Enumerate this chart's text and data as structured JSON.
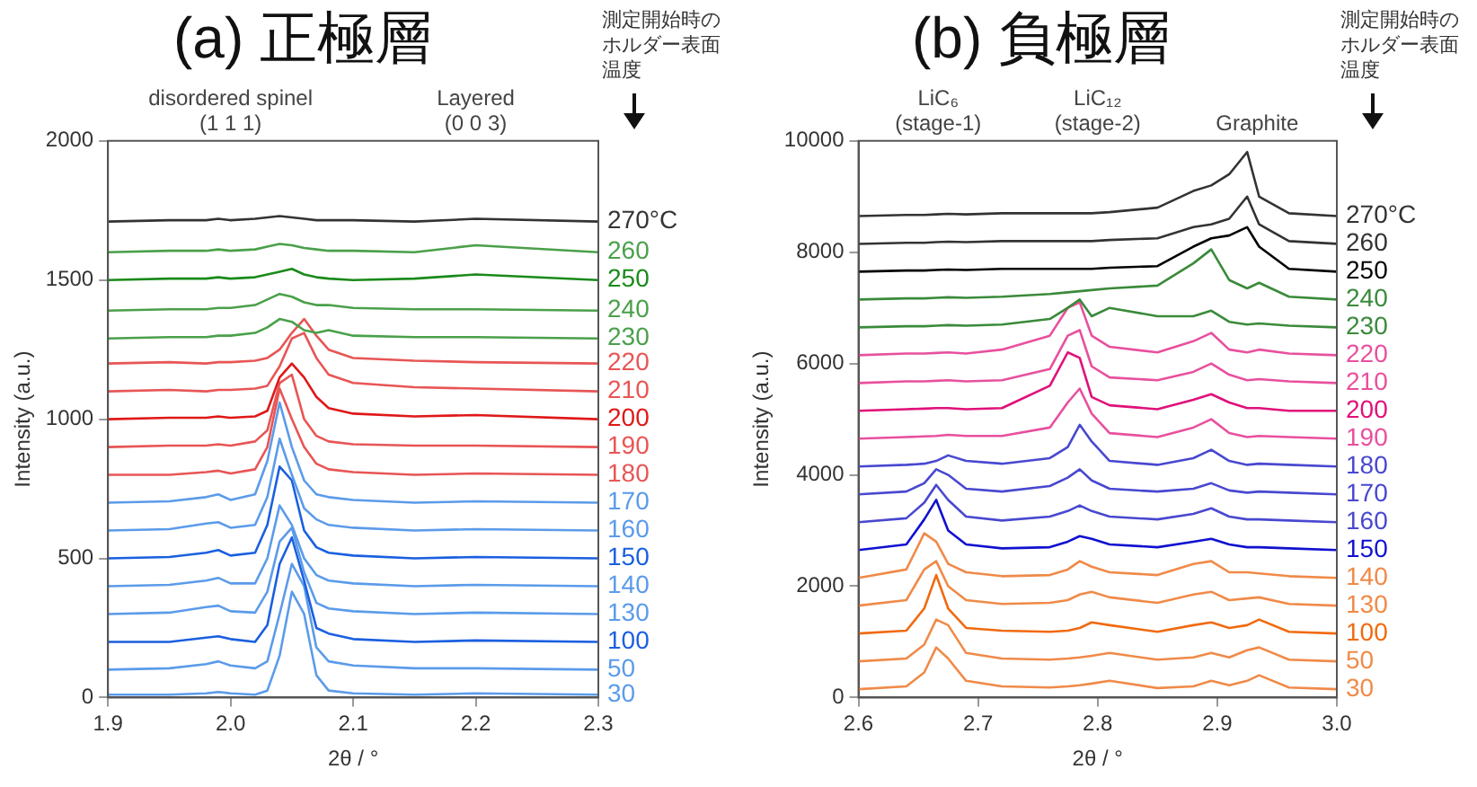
{
  "chart_data": [
    {
      "type": "line",
      "title": "(a) 正極層",
      "xlabel": "2θ / °",
      "ylabel": "Intensity (a.u.)",
      "marker": "none",
      "legend": false,
      "xlim": [
        1.9,
        2.3
      ],
      "xticks": [
        1.9,
        {
          "value": 2,
          "label": "2.0"
        },
        2.1,
        2.2,
        2.3
      ],
      "ylim": [
        0,
        2000
      ],
      "yticks": [
        0,
        500,
        1000,
        1500,
        2000
      ],
      "annotations": [
        "測定開始時のホルダー表面温度",
        "disordered spinel\n(1 1 1)",
        "Layered\n(0 0 3)"
      ],
      "x": [
        1.9,
        1.95,
        1.98,
        1.99,
        2.0,
        2.02,
        2.03,
        2.04,
        2.05,
        2.06,
        2.07,
        2.08,
        2.1,
        2.15,
        2.2,
        2.3
      ],
      "series": [
        {
          "name": "270°C",
          "color": "#333333",
          "values": [
            1710,
            1715,
            1715,
            1720,
            1715,
            1720,
            1725,
            1730,
            1725,
            1720,
            1715,
            1715,
            1715,
            1710,
            1720,
            1710
          ]
        },
        {
          "name": "260",
          "color": "#4aa04a",
          "values": [
            1600,
            1605,
            1605,
            1610,
            1605,
            1610,
            1620,
            1630,
            1625,
            1615,
            1610,
            1605,
            1605,
            1600,
            1625,
            1600
          ]
        },
        {
          "name": "250",
          "color": "#1a8a1a",
          "values": [
            1500,
            1505,
            1505,
            1510,
            1505,
            1510,
            1520,
            1530,
            1540,
            1520,
            1510,
            1505,
            1500,
            1505,
            1520,
            1500
          ]
        },
        {
          "name": "240",
          "color": "#4aa04a",
          "values": [
            1390,
            1395,
            1395,
            1400,
            1400,
            1410,
            1430,
            1450,
            1440,
            1420,
            1410,
            1410,
            1400,
            1395,
            1395,
            1390
          ]
        },
        {
          "name": "230",
          "color": "#4aa04a",
          "values": [
            1290,
            1295,
            1295,
            1300,
            1300,
            1310,
            1330,
            1360,
            1350,
            1320,
            1310,
            1320,
            1300,
            1295,
            1295,
            1290
          ]
        },
        {
          "name": "220",
          "color": "#e85555",
          "values": [
            1200,
            1205,
            1200,
            1205,
            1205,
            1210,
            1220,
            1250,
            1310,
            1360,
            1300,
            1250,
            1220,
            1210,
            1205,
            1200
          ]
        },
        {
          "name": "210",
          "color": "#e85555",
          "values": [
            1100,
            1105,
            1100,
            1105,
            1105,
            1110,
            1120,
            1190,
            1290,
            1310,
            1220,
            1160,
            1130,
            1115,
            1110,
            1100
          ]
        },
        {
          "name": "200",
          "color": "#e01818",
          "values": [
            1000,
            1005,
            1005,
            1010,
            1005,
            1010,
            1030,
            1150,
            1200,
            1150,
            1080,
            1040,
            1020,
            1010,
            1015,
            1000
          ]
        },
        {
          "name": "190",
          "color": "#e85555",
          "values": [
            900,
            905,
            905,
            910,
            905,
            920,
            960,
            1130,
            1160,
            1000,
            940,
            920,
            910,
            905,
            905,
            900
          ]
        },
        {
          "name": "180",
          "color": "#e85555",
          "values": [
            800,
            800,
            810,
            815,
            805,
            820,
            900,
            1110,
            1000,
            900,
            840,
            820,
            810,
            800,
            805,
            800
          ]
        },
        {
          "name": "170",
          "color": "#5b9bea",
          "values": [
            700,
            705,
            720,
            730,
            710,
            730,
            850,
            1060,
            900,
            780,
            730,
            720,
            710,
            700,
            705,
            700
          ]
        },
        {
          "name": "160",
          "color": "#5b9bea",
          "values": [
            600,
            605,
            625,
            630,
            610,
            620,
            720,
            930,
            800,
            680,
            640,
            620,
            610,
            600,
            605,
            600
          ]
        },
        {
          "name": "150",
          "color": "#1a5fe0",
          "values": [
            500,
            505,
            520,
            530,
            510,
            520,
            620,
            830,
            780,
            600,
            540,
            520,
            510,
            500,
            505,
            500
          ]
        },
        {
          "name": "140",
          "color": "#5b9bea",
          "values": [
            400,
            405,
            420,
            430,
            410,
            410,
            500,
            690,
            620,
            500,
            440,
            420,
            410,
            400,
            405,
            400
          ]
        },
        {
          "name": "130",
          "color": "#5b9bea",
          "values": [
            300,
            305,
            325,
            330,
            310,
            305,
            380,
            560,
            610,
            450,
            340,
            320,
            310,
            300,
            305,
            300
          ]
        },
        {
          "name": "100",
          "color": "#1a5fe0",
          "values": [
            200,
            200,
            215,
            220,
            210,
            200,
            260,
            480,
            575,
            420,
            250,
            230,
            210,
            200,
            205,
            200
          ]
        },
        {
          "name": "50",
          "color": "#5b9bea",
          "values": [
            100,
            105,
            120,
            130,
            115,
            105,
            130,
            300,
            480,
            400,
            180,
            130,
            115,
            105,
            105,
            100
          ]
        },
        {
          "name": "30",
          "color": "#5b9bea",
          "values": [
            10,
            10,
            15,
            20,
            15,
            10,
            25,
            150,
            380,
            300,
            80,
            25,
            15,
            10,
            15,
            10
          ]
        }
      ]
    },
    {
      "type": "line",
      "title": "(b) 負極層",
      "xlabel": "2θ / °",
      "ylabel": "Intensity (a.u.)",
      "marker": "none",
      "legend": false,
      "xlim": [
        2.6,
        3.0
      ],
      "xticks": [
        2.6,
        2.7,
        2.8,
        2.9,
        {
          "value": 3,
          "label": "3.0"
        }
      ],
      "ylim": [
        0,
        10000
      ],
      "yticks": [
        0,
        2000,
        4000,
        6000,
        8000,
        10000
      ],
      "annotations": [
        "測定開始時のホルダー表面温度",
        "LiC₆\n(stage-1)",
        "LiC₁₂\n(stage-2)",
        "Graphite"
      ],
      "x": [
        2.6,
        2.64,
        2.655,
        2.665,
        2.675,
        2.69,
        2.72,
        2.76,
        2.775,
        2.785,
        2.795,
        2.81,
        2.85,
        2.88,
        2.895,
        2.91,
        2.925,
        2.935,
        2.96,
        3.0
      ],
      "series": [
        {
          "name": "270°C",
          "color": "#333333",
          "values": [
            8650,
            8670,
            8670,
            8680,
            8690,
            8680,
            8700,
            8700,
            8700,
            8700,
            8700,
            8720,
            8800,
            9100,
            9200,
            9400,
            9800,
            9000,
            8700,
            8650
          ]
        },
        {
          "name": "260",
          "color": "#333333",
          "values": [
            8150,
            8170,
            8170,
            8180,
            8190,
            8180,
            8200,
            8200,
            8200,
            8200,
            8200,
            8220,
            8250,
            8450,
            8500,
            8600,
            9000,
            8500,
            8200,
            8150
          ]
        },
        {
          "name": "250",
          "color": "#000000",
          "values": [
            7650,
            7670,
            7670,
            7680,
            7690,
            7680,
            7700,
            7700,
            7700,
            7700,
            7700,
            7720,
            7750,
            8100,
            8250,
            8300,
            8450,
            8100,
            7700,
            7650
          ]
        },
        {
          "name": "240",
          "color": "#3a8a3a",
          "values": [
            7150,
            7170,
            7170,
            7180,
            7190,
            7180,
            7200,
            7250,
            7280,
            7300,
            7320,
            7350,
            7400,
            7800,
            8050,
            7500,
            7350,
            7450,
            7200,
            7150
          ]
        },
        {
          "name": "230",
          "color": "#3a8a3a",
          "values": [
            6650,
            6670,
            6670,
            6680,
            6690,
            6680,
            6700,
            6800,
            7000,
            7150,
            6850,
            7000,
            6850,
            6850,
            6950,
            6750,
            6700,
            6720,
            6680,
            6650
          ]
        },
        {
          "name": "220",
          "color": "#e8509e",
          "values": [
            6150,
            6180,
            6180,
            6190,
            6200,
            6180,
            6250,
            6500,
            7000,
            7100,
            6500,
            6300,
            6200,
            6400,
            6550,
            6250,
            6200,
            6250,
            6180,
            6150
          ]
        },
        {
          "name": "210",
          "color": "#e8509e",
          "values": [
            5650,
            5680,
            5680,
            5690,
            5700,
            5680,
            5700,
            5900,
            6500,
            6600,
            5950,
            5750,
            5700,
            5850,
            6000,
            5800,
            5700,
            5720,
            5680,
            5650
          ]
        },
        {
          "name": "200",
          "color": "#e0107a",
          "values": [
            5150,
            5180,
            5190,
            5200,
            5200,
            5180,
            5200,
            5600,
            6200,
            6100,
            5400,
            5250,
            5180,
            5350,
            5450,
            5300,
            5200,
            5200,
            5150,
            5150
          ]
        },
        {
          "name": "190",
          "color": "#e8509e",
          "values": [
            4650,
            4680,
            4690,
            4700,
            4720,
            4700,
            4700,
            4850,
            5300,
            5550,
            5100,
            4750,
            4680,
            4850,
            5000,
            4750,
            4680,
            4700,
            4680,
            4650
          ]
        },
        {
          "name": "180",
          "color": "#4848d0",
          "values": [
            4150,
            4180,
            4200,
            4250,
            4350,
            4250,
            4200,
            4300,
            4500,
            4900,
            4600,
            4250,
            4180,
            4300,
            4450,
            4250,
            4180,
            4200,
            4180,
            4150
          ]
        },
        {
          "name": "170",
          "color": "#4848d0",
          "values": [
            3650,
            3700,
            3850,
            4100,
            4000,
            3750,
            3700,
            3800,
            3950,
            4100,
            3900,
            3750,
            3700,
            3750,
            3850,
            3720,
            3680,
            3700,
            3680,
            3650
          ]
        },
        {
          "name": "160",
          "color": "#4848d0",
          "values": [
            3150,
            3220,
            3500,
            3820,
            3550,
            3250,
            3180,
            3250,
            3350,
            3450,
            3350,
            3250,
            3200,
            3300,
            3400,
            3250,
            3200,
            3200,
            3180,
            3150
          ]
        },
        {
          "name": "150",
          "color": "#1010d0",
          "values": [
            2650,
            2750,
            3200,
            3550,
            3000,
            2750,
            2680,
            2700,
            2800,
            2900,
            2850,
            2750,
            2700,
            2800,
            2850,
            2750,
            2700,
            2700,
            2680,
            2650
          ]
        },
        {
          "name": "140",
          "color": "#f08a48",
          "values": [
            2150,
            2300,
            2950,
            2800,
            2400,
            2250,
            2180,
            2200,
            2300,
            2450,
            2350,
            2250,
            2200,
            2400,
            2450,
            2250,
            2250,
            2230,
            2180,
            2150
          ]
        },
        {
          "name": "130",
          "color": "#f08a48",
          "values": [
            1650,
            1750,
            2300,
            2450,
            2000,
            1750,
            1680,
            1700,
            1750,
            1850,
            1900,
            1800,
            1700,
            1850,
            1900,
            1750,
            1780,
            1800,
            1680,
            1650
          ]
        },
        {
          "name": "100",
          "color": "#f06a10",
          "values": [
            1150,
            1200,
            1600,
            2200,
            1600,
            1250,
            1200,
            1180,
            1200,
            1250,
            1350,
            1300,
            1180,
            1300,
            1350,
            1250,
            1300,
            1400,
            1180,
            1150
          ]
        },
        {
          "name": "50",
          "color": "#f08a48",
          "values": [
            650,
            700,
            950,
            1400,
            1300,
            800,
            700,
            680,
            700,
            720,
            750,
            800,
            680,
            720,
            800,
            720,
            850,
            900,
            680,
            650
          ]
        },
        {
          "name": "30",
          "color": "#f08a48",
          "values": [
            150,
            200,
            450,
            900,
            700,
            300,
            200,
            180,
            200,
            220,
            250,
            300,
            170,
            200,
            300,
            220,
            300,
            400,
            180,
            150
          ]
        }
      ]
    }
  ]
}
